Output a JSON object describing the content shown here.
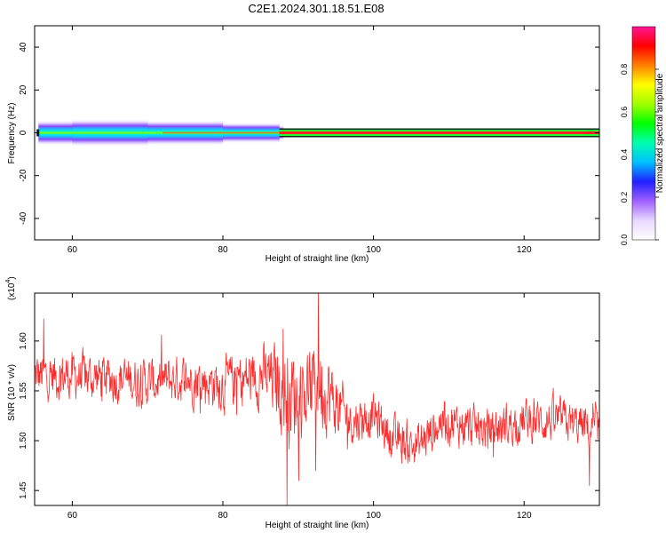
{
  "title": "C2E1.2024.301.18.51.E08",
  "chart_data": [
    {
      "type": "heatmap",
      "xlabel": "Height of straight line (km)",
      "ylabel": "Frequency (Hz)",
      "xlim": [
        55,
        130
      ],
      "ylim": [
        -50,
        50
      ],
      "xticks": [
        60,
        80,
        100,
        120
      ],
      "yticks": [
        40,
        20,
        0,
        -20,
        -40
      ],
      "colorbar": {
        "label": "Normalized spectral amplitude",
        "ticks": [
          "0.0",
          "0.2",
          "0.4",
          "0.6",
          "0.8"
        ],
        "range": [
          0,
          1
        ],
        "colors": [
          "#ffffff",
          "#e8d8ff",
          "#a060ff",
          "#2020ff",
          "#00c0ff",
          "#00ffb0",
          "#00ff00",
          "#a0ff00",
          "#ffff00",
          "#ff8000",
          "#ff0000",
          "#ff1493"
        ]
      },
      "band": {
        "center_hz": 0,
        "x": [
          55.5,
          60,
          70,
          80,
          87.5,
          88,
          95,
          100,
          110,
          120,
          130
        ],
        "halfwidth_hz": [
          2.5,
          3,
          3,
          2.5,
          2,
          1.2,
          1.2,
          1.2,
          1.2,
          1.2,
          1.2
        ],
        "core_amplitude": [
          0.4,
          0.45,
          0.5,
          0.55,
          0.6,
          0.95,
          0.95,
          0.95,
          0.95,
          0.95,
          0.95
        ]
      }
    },
    {
      "type": "line",
      "xlabel": "Height of straight line (km)",
      "ylabel": "SNR (10 * v/v)",
      "y_multiplier": "(x10",
      "y_multiplier_exp": "4",
      "xlim": [
        55,
        130
      ],
      "ylim": [
        1.435,
        1.648
      ],
      "xticks": [
        60,
        80,
        100,
        120
      ],
      "yticks": [
        "1.60",
        "1.55",
        "1.50",
        "1.45"
      ],
      "color": "#ff2a2a",
      "trend": {
        "x": [
          55,
          60,
          65,
          70,
          75,
          80,
          85,
          87,
          89,
          91,
          93,
          95,
          97,
          100,
          103,
          106,
          109,
          112,
          115,
          120,
          125,
          130
        ],
        "y": [
          1.565,
          1.565,
          1.563,
          1.558,
          1.562,
          1.557,
          1.565,
          1.56,
          1.545,
          1.55,
          1.56,
          1.535,
          1.52,
          1.525,
          1.5,
          1.495,
          1.52,
          1.515,
          1.51,
          1.52,
          1.52,
          1.51
        ],
        "amp": [
          0.022,
          0.022,
          0.022,
          0.022,
          0.022,
          0.025,
          0.028,
          0.035,
          0.045,
          0.04,
          0.045,
          0.03,
          0.022,
          0.02,
          0.02,
          0.022,
          0.02,
          0.02,
          0.02,
          0.02,
          0.02,
          0.02
        ]
      },
      "extremes": [
        {
          "x": 92.7,
          "y": 1.648
        },
        {
          "x": 88.5,
          "y": 1.435
        },
        {
          "x": 88.0,
          "y": 1.612
        },
        {
          "x": 56.2,
          "y": 1.622
        },
        {
          "x": 92.3,
          "y": 1.47
        },
        {
          "x": 128.7,
          "y": 1.455
        }
      ]
    }
  ]
}
